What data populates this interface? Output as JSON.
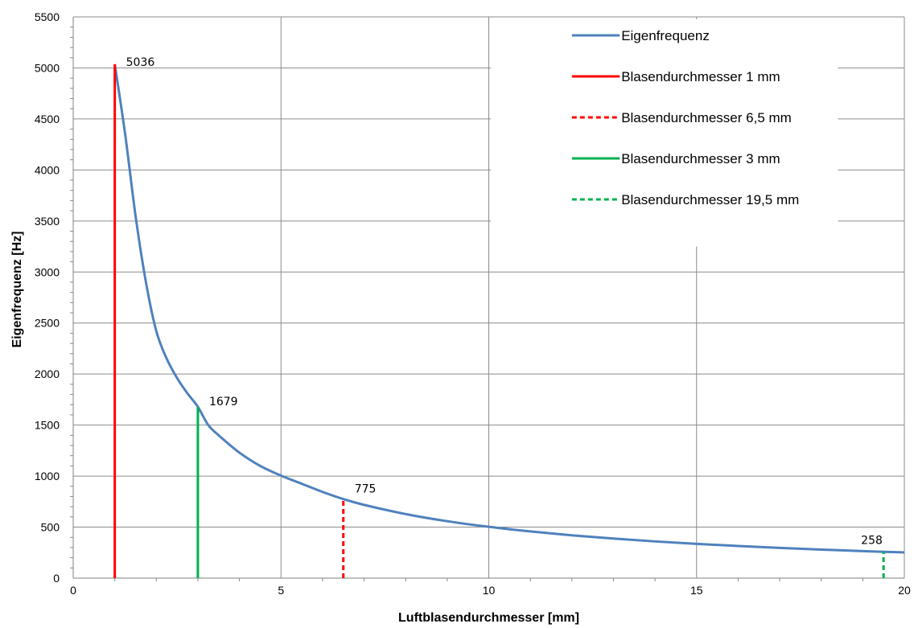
{
  "chart_data": {
    "type": "line",
    "xlabel": "Luftblasendurchmesser [mm]",
    "ylabel": "Eigenfrequenz [Hz]",
    "xlim": [
      0,
      20
    ],
    "ylim": [
      0,
      5500
    ],
    "x_ticks": [
      0,
      5,
      10,
      15,
      20
    ],
    "y_ticks": [
      0,
      500,
      1000,
      1500,
      2000,
      2500,
      3000,
      3500,
      4000,
      4500,
      5000,
      5500
    ],
    "grid": true,
    "legend_position": "top-right",
    "series": [
      {
        "name": "Eigenfrequenz",
        "kind": "curve",
        "color": "#4F81BD",
        "dash": "solid",
        "x": [
          1,
          1.25,
          1.5,
          1.75,
          2,
          2.25,
          2.5,
          2.75,
          3,
          3.25,
          3.5,
          4,
          4.5,
          5,
          5.5,
          6,
          6.5,
          7,
          8,
          9,
          10,
          11,
          12,
          13,
          14,
          15,
          16,
          17,
          18,
          19,
          19.5,
          20
        ],
        "y": [
          5036,
          4350,
          3550,
          2900,
          2420,
          2150,
          1960,
          1810,
          1679,
          1500,
          1400,
          1230,
          1100,
          1005,
          925,
          845,
          775,
          718,
          628,
          558,
          503,
          458,
          420,
          388,
          360,
          336,
          315,
          296,
          280,
          265,
          258,
          252
        ]
      },
      {
        "name": "Blasendurchmesser 1 mm",
        "kind": "vline",
        "color": "#FF0000",
        "dash": "solid",
        "x": 1,
        "y": 5036
      },
      {
        "name": "Blasendurchmesser 6,5 mm",
        "kind": "vline",
        "color": "#FF0000",
        "dash": "dashed",
        "x": 6.5,
        "y": 775
      },
      {
        "name": "Blasendurchmesser 3 mm",
        "kind": "vline",
        "color": "#00B050",
        "dash": "solid",
        "x": 3,
        "y": 1679
      },
      {
        "name": "Blasendurchmesser 19,5 mm",
        "kind": "vline",
        "color": "#00B050",
        "dash": "dashed",
        "x": 19.5,
        "y": 258
      }
    ],
    "data_labels": [
      {
        "text": "5036",
        "x": 1,
        "y": 5036
      },
      {
        "text": "1679",
        "x": 3,
        "y": 1679
      },
      {
        "text": "775",
        "x": 6.5,
        "y": 775
      },
      {
        "text": "258",
        "x": 19.5,
        "y": 258
      }
    ]
  }
}
